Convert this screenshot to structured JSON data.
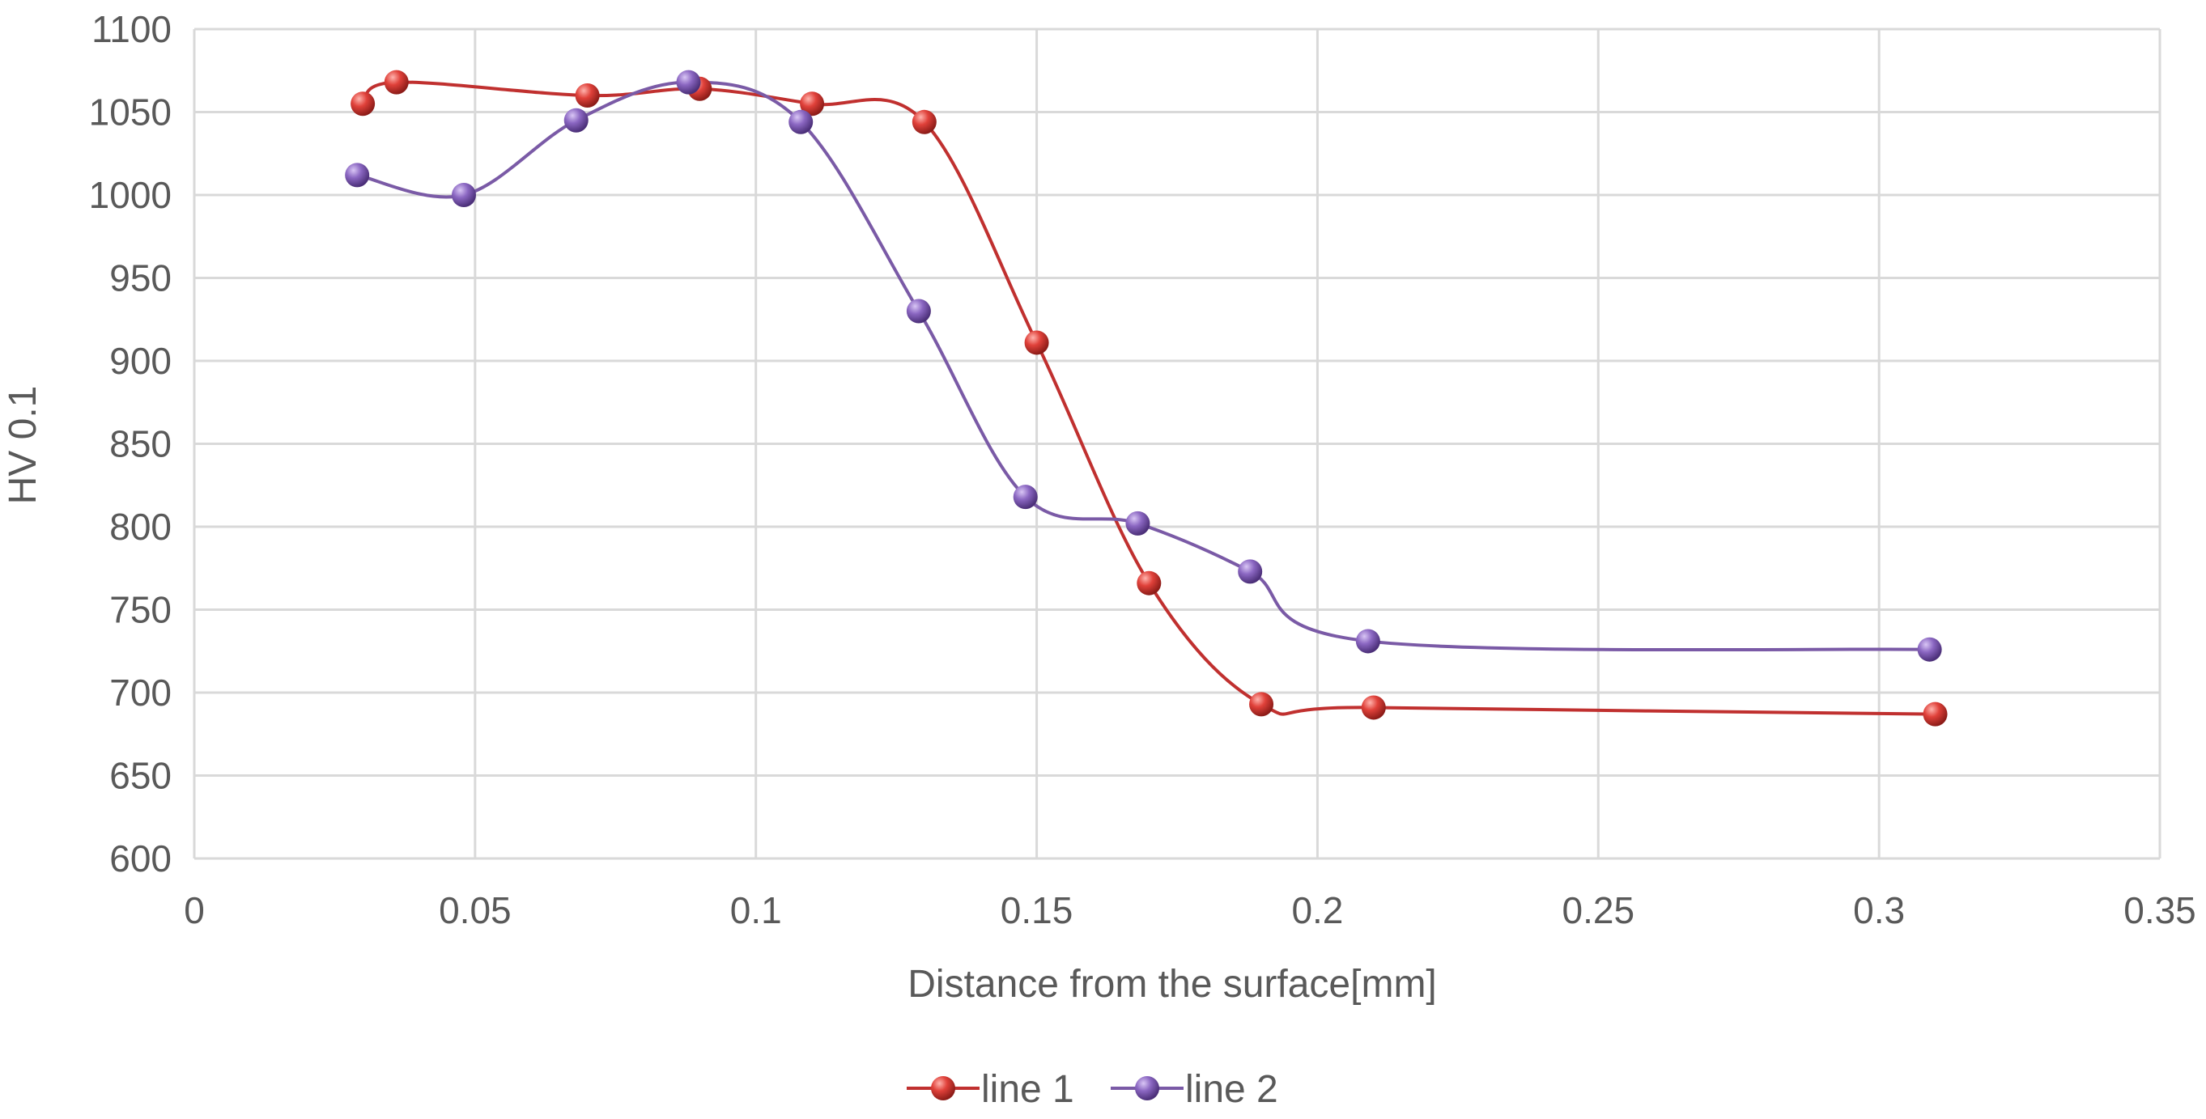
{
  "chart_data": {
    "type": "line",
    "smooth": true,
    "title": "",
    "xlabel": "Distance from the surface[mm]",
    "ylabel": "HV 0.1",
    "xlim": [
      0,
      0.35
    ],
    "ylim": [
      600,
      1100
    ],
    "xticks": [
      0,
      0.05,
      0.1,
      0.15,
      0.2,
      0.25,
      0.3,
      0.35
    ],
    "xtick_labels": [
      "0",
      "0.05",
      "0.1",
      "0.15",
      "0.2",
      "0.25",
      "0.3",
      "0.35"
    ],
    "yticks": [
      600,
      650,
      700,
      750,
      800,
      850,
      900,
      950,
      1000,
      1050,
      1100
    ],
    "ytick_labels": [
      "600",
      "650",
      "700",
      "750",
      "800",
      "850",
      "900",
      "950",
      "1000",
      "1050",
      "1100"
    ],
    "grid": true,
    "legend_position": "bottom-center",
    "series": [
      {
        "name": "line 1",
        "color": "#c0302f",
        "marker_color": "#d93b35",
        "x": [
          0.03,
          0.036,
          0.07,
          0.09,
          0.11,
          0.13,
          0.15,
          0.17,
          0.19,
          0.21,
          0.31
        ],
        "y": [
          1055,
          1068,
          1060,
          1064,
          1055,
          1044,
          911,
          766,
          693,
          691,
          687
        ]
      },
      {
        "name": "line 2",
        "color": "#7a5aa6",
        "marker_color": "#8a66c0",
        "x": [
          0.029,
          0.048,
          0.068,
          0.088,
          0.108,
          0.129,
          0.148,
          0.168,
          0.188,
          0.209,
          0.309
        ],
        "y": [
          1012,
          1000,
          1045,
          1068,
          1044,
          930,
          818,
          802,
          773,
          731,
          726
        ]
      }
    ]
  }
}
